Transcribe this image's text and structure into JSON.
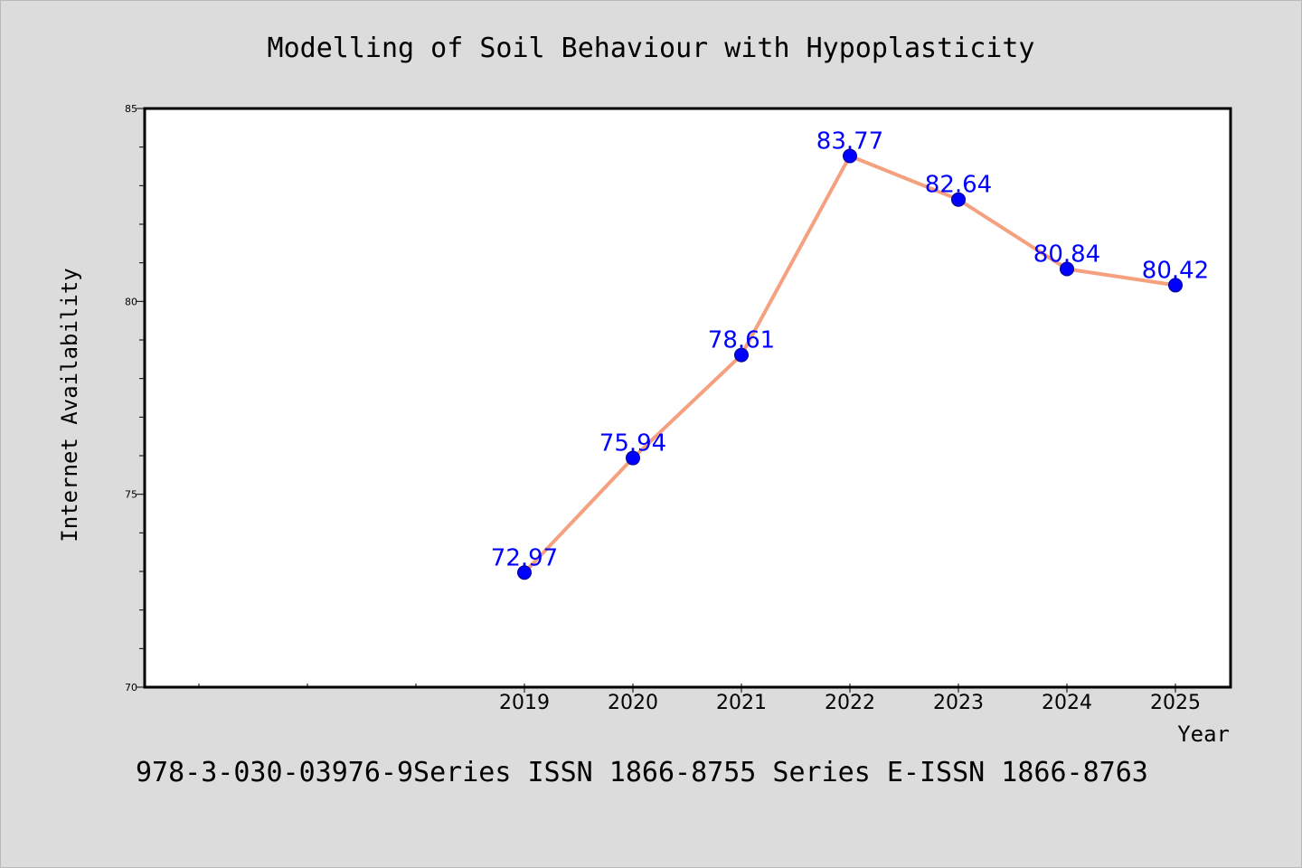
{
  "chart_data": {
    "type": "line",
    "title": "Modelling of Soil Behaviour with Hypoplasticity",
    "xlabel": "Year",
    "ylabel": "Internet Availability",
    "x": [
      "2019",
      "2020",
      "2021",
      "2022",
      "2023",
      "2024",
      "2025"
    ],
    "values": [
      72.97,
      75.94,
      78.61,
      83.77,
      82.64,
      80.84,
      80.42
    ],
    "data_labels": [
      "72.97",
      "75.94",
      "78.61",
      "83.77",
      "82.64",
      "80.84",
      "80.42"
    ],
    "ylim": [
      70,
      85
    ],
    "yticks": [
      "70",
      "75",
      "80",
      "85"
    ],
    "grid": false,
    "line_color": "#f5a07e",
    "marker_color": "#0000ff",
    "label_color": "#0000ff"
  },
  "footer": "978-3-030-03976-9Series ISSN 1866-8755 Series E-ISSN 1866-8763"
}
